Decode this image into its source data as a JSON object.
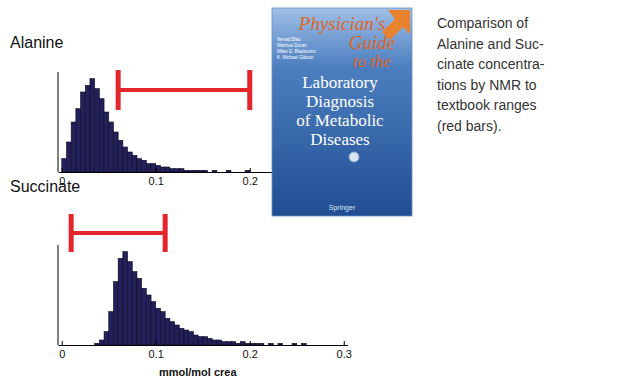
{
  "chart_data": [
    {
      "type": "histogram",
      "title": "Alanine",
      "color": "#23205a",
      "bins": [
        0,
        0.005,
        0.01,
        0.015,
        0.02,
        0.025,
        0.03,
        0.035,
        0.04,
        0.045,
        0.05,
        0.055,
        0.06,
        0.065,
        0.07,
        0.075,
        0.08,
        0.085,
        0.09,
        0.095,
        0.1,
        0.105,
        0.11,
        0.115,
        0.12,
        0.125,
        0.13,
        0.135,
        0.14,
        0.145,
        0.15,
        0.155,
        0.16,
        0.165,
        0.17,
        0.175,
        0.18,
        0.185,
        0.19,
        0.195,
        0.2
      ],
      "counts": [
        8,
        18,
        30,
        38,
        48,
        52,
        56,
        50,
        44,
        36,
        30,
        24,
        19,
        15,
        12,
        10,
        8,
        7,
        5,
        5,
        4,
        3,
        3,
        2,
        2,
        2,
        1,
        1,
        1,
        1,
        1,
        0,
        1,
        0,
        0,
        1,
        0,
        0,
        0,
        1
      ],
      "reference_range": [
        0.06,
        0.2
      ],
      "xlim": [
        -0.004,
        0.224
      ],
      "xticks": [
        0,
        0.1,
        0.2
      ],
      "ylim": [
        0,
        60
      ],
      "tick_labels": "x",
      "grid": false
    },
    {
      "type": "histogram",
      "title": "Succinate",
      "x_label": "mmol/mol crea",
      "color": "#23205a",
      "bins": [
        0.035,
        0.04,
        0.045,
        0.05,
        0.055,
        0.06,
        0.065,
        0.07,
        0.075,
        0.08,
        0.085,
        0.09,
        0.095,
        0.1,
        0.105,
        0.11,
        0.115,
        0.12,
        0.125,
        0.13,
        0.135,
        0.14,
        0.145,
        0.15,
        0.155,
        0.16,
        0.165,
        0.17,
        0.175,
        0.18,
        0.185,
        0.19,
        0.195,
        0.2,
        0.205,
        0.21,
        0.215,
        0.22,
        0.225,
        0.23,
        0.235,
        0.24,
        0.245,
        0.25,
        0.255,
        0.26
      ],
      "counts": [
        1,
        3,
        8,
        20,
        38,
        52,
        56,
        50,
        44,
        40,
        34,
        30,
        26,
        22,
        20,
        16,
        14,
        12,
        10,
        9,
        8,
        6,
        5,
        5,
        4,
        3,
        3,
        2,
        2,
        2,
        1,
        2,
        1,
        1,
        1,
        1,
        0,
        1,
        0,
        1,
        0,
        0,
        1,
        0,
        1
      ],
      "reference_range": [
        0.01,
        0.11
      ],
      "xlim": [
        -0.004,
        0.304
      ],
      "xticks": [
        0,
        0.1,
        0.2,
        0.3
      ],
      "ylim": [
        0,
        60
      ],
      "tick_labels": "x",
      "grid": false
    }
  ],
  "book_cover": {
    "title_lines": [
      "Physician's",
      "Guide",
      "to the",
      "Laboratory",
      "Diagnosis",
      "of Metabolic",
      "Diseases"
    ],
    "editors": [
      "Nenad Blau",
      "Marinus Duran",
      "Milan E. Blaskovics",
      "K. Michael Gibson"
    ],
    "publisher": "Springer"
  },
  "caption": {
    "lines": [
      "Comparison of",
      "Alanine and Suc-",
      "cinate concentra-",
      "tions by NMR to",
      "textbook ranges",
      "(red bars)."
    ]
  }
}
